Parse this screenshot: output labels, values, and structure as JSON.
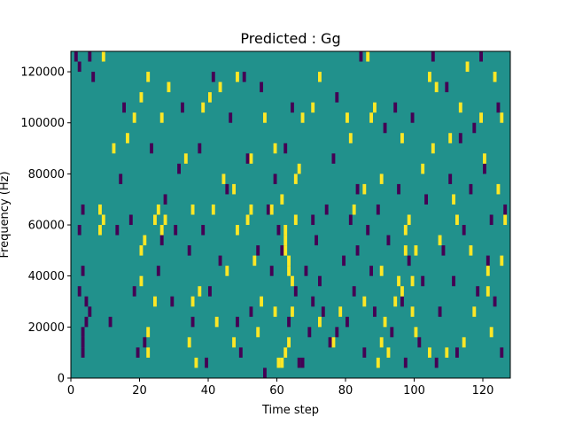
{
  "chart_data": {
    "type": "heatmap",
    "title": "Predicted : Gg",
    "xlabel": "Time step",
    "ylabel": "Frequency (Hz)",
    "xlim": [
      0,
      128
    ],
    "ylim": [
      0,
      128000
    ],
    "x_ticks": [
      0,
      20,
      40,
      60,
      80,
      100,
      120
    ],
    "y_ticks": [
      0,
      20000,
      40000,
      60000,
      80000,
      100000,
      120000
    ],
    "x_tick_labels": [
      "0",
      "20",
      "40",
      "60",
      "80",
      "100",
      "120"
    ],
    "y_tick_labels": [
      "0",
      "20000",
      "40000",
      "60000",
      "80000",
      "100000",
      "120000"
    ],
    "grid": false,
    "colormap": "viridis",
    "colors": {
      "background": "#21918c",
      "low": "#440154",
      "high": "#fde725"
    },
    "cell_width_steps": 1,
    "cell_height_hz": 4000,
    "high_cells": [
      [
        9,
        124000
      ],
      [
        22,
        116000
      ],
      [
        24,
        60000
      ],
      [
        25,
        64000
      ],
      [
        26,
        56000
      ],
      [
        27,
        60000
      ],
      [
        12,
        88000
      ],
      [
        16,
        92000
      ],
      [
        18,
        100000
      ],
      [
        20,
        108000
      ],
      [
        8,
        64000
      ],
      [
        8,
        56000
      ],
      [
        9,
        60000
      ],
      [
        20,
        48000
      ],
      [
        21,
        52000
      ],
      [
        20,
        36000
      ],
      [
        22,
        16000
      ],
      [
        22,
        8000
      ],
      [
        24,
        28000
      ],
      [
        26,
        100000
      ],
      [
        28,
        112000
      ],
      [
        33,
        84000
      ],
      [
        34,
        12000
      ],
      [
        35,
        64000
      ],
      [
        35,
        28000
      ],
      [
        36,
        4000
      ],
      [
        37,
        32000
      ],
      [
        38,
        104000
      ],
      [
        40,
        108000
      ],
      [
        42,
        20000
      ],
      [
        44,
        76000
      ],
      [
        45,
        40000
      ],
      [
        47,
        12000
      ],
      [
        48,
        56000
      ],
      [
        48,
        116000
      ],
      [
        51,
        60000
      ],
      [
        52,
        64000
      ],
      [
        53,
        44000
      ],
      [
        54,
        16000
      ],
      [
        55,
        28000
      ],
      [
        58,
        64000
      ],
      [
        59,
        88000
      ],
      [
        61,
        68000
      ],
      [
        62,
        48000
      ],
      [
        62,
        52000
      ],
      [
        62,
        56000
      ],
      [
        63,
        40000
      ],
      [
        63,
        44000
      ],
      [
        64,
        36000
      ],
      [
        64,
        24000
      ],
      [
        60,
        4000
      ],
      [
        61,
        4000
      ],
      [
        62,
        8000
      ],
      [
        63,
        12000
      ],
      [
        65,
        60000
      ],
      [
        65,
        76000
      ],
      [
        66,
        80000
      ],
      [
        67,
        100000
      ],
      [
        70,
        104000
      ],
      [
        72,
        116000
      ],
      [
        72,
        20000
      ],
      [
        76,
        12000
      ],
      [
        78,
        24000
      ],
      [
        80,
        100000
      ],
      [
        81,
        92000
      ],
      [
        82,
        64000
      ],
      [
        85,
        72000
      ],
      [
        86,
        124000
      ],
      [
        88,
        104000
      ],
      [
        90,
        76000
      ],
      [
        89,
        4000
      ],
      [
        90,
        40000
      ],
      [
        90,
        12000
      ],
      [
        91,
        20000
      ],
      [
        92,
        8000
      ],
      [
        94,
        28000
      ],
      [
        95,
        36000
      ],
      [
        96,
        32000
      ],
      [
        97,
        48000
      ],
      [
        97,
        56000
      ],
      [
        98,
        60000
      ],
      [
        99,
        36000
      ],
      [
        99,
        24000
      ],
      [
        100,
        48000
      ],
      [
        100,
        16000
      ],
      [
        102,
        80000
      ],
      [
        104,
        8000
      ],
      [
        104,
        116000
      ],
      [
        106,
        112000
      ],
      [
        109,
        8000
      ],
      [
        111,
        68000
      ],
      [
        113,
        104000
      ],
      [
        114,
        12000
      ],
      [
        115,
        120000
      ],
      [
        116,
        48000
      ],
      [
        117,
        24000
      ],
      [
        119,
        100000
      ],
      [
        121,
        40000
      ],
      [
        121,
        32000
      ],
      [
        120,
        84000
      ],
      [
        122,
        16000
      ],
      [
        123,
        116000
      ],
      [
        125,
        100000
      ],
      [
        124,
        72000
      ],
      [
        125,
        44000
      ],
      [
        126,
        60000
      ],
      [
        105,
        88000
      ],
      [
        110,
        92000
      ],
      [
        112,
        60000
      ],
      [
        107,
        52000
      ],
      [
        87,
        100000
      ],
      [
        85,
        28000
      ],
      [
        96,
        92000
      ],
      [
        47,
        72000
      ],
      [
        43,
        112000
      ],
      [
        59,
        24000
      ],
      [
        56,
        100000
      ],
      [
        41,
        64000
      ],
      [
        52,
        84000
      ]
    ],
    "low_cells": [
      [
        1,
        124000
      ],
      [
        2,
        120000
      ],
      [
        3,
        8000
      ],
      [
        3,
        12000
      ],
      [
        3,
        16000
      ],
      [
        4,
        20000
      ],
      [
        5,
        24000
      ],
      [
        4,
        28000
      ],
      [
        2,
        32000
      ],
      [
        3,
        40000
      ],
      [
        2,
        56000
      ],
      [
        3,
        64000
      ],
      [
        5,
        124000
      ],
      [
        6,
        116000
      ],
      [
        11,
        20000
      ],
      [
        13,
        56000
      ],
      [
        14,
        76000
      ],
      [
        15,
        104000
      ],
      [
        17,
        60000
      ],
      [
        18,
        32000
      ],
      [
        19,
        8000
      ],
      [
        21,
        12000
      ],
      [
        23,
        88000
      ],
      [
        25,
        40000
      ],
      [
        26,
        52000
      ],
      [
        27,
        68000
      ],
      [
        29,
        28000
      ],
      [
        30,
        56000
      ],
      [
        31,
        80000
      ],
      [
        32,
        104000
      ],
      [
        34,
        48000
      ],
      [
        35,
        20000
      ],
      [
        37,
        88000
      ],
      [
        38,
        56000
      ],
      [
        39,
        4000
      ],
      [
        40,
        32000
      ],
      [
        41,
        116000
      ],
      [
        43,
        44000
      ],
      [
        45,
        72000
      ],
      [
        46,
        100000
      ],
      [
        48,
        20000
      ],
      [
        49,
        8000
      ],
      [
        50,
        116000
      ],
      [
        51,
        84000
      ],
      [
        52,
        24000
      ],
      [
        54,
        48000
      ],
      [
        55,
        112000
      ],
      [
        56,
        0
      ],
      [
        57,
        64000
      ],
      [
        58,
        40000
      ],
      [
        59,
        76000
      ],
      [
        60,
        56000
      ],
      [
        62,
        88000
      ],
      [
        63,
        20000
      ],
      [
        64,
        104000
      ],
      [
        66,
        4000
      ],
      [
        67,
        4000
      ],
      [
        68,
        40000
      ],
      [
        69,
        16000
      ],
      [
        70,
        28000
      ],
      [
        71,
        52000
      ],
      [
        72,
        36000
      ],
      [
        73,
        24000
      ],
      [
        74,
        64000
      ],
      [
        75,
        12000
      ],
      [
        76,
        84000
      ],
      [
        77,
        108000
      ],
      [
        79,
        44000
      ],
      [
        80,
        20000
      ],
      [
        81,
        60000
      ],
      [
        82,
        32000
      ],
      [
        83,
        72000
      ],
      [
        84,
        124000
      ],
      [
        85,
        8000
      ],
      [
        86,
        56000
      ],
      [
        87,
        40000
      ],
      [
        88,
        24000
      ],
      [
        89,
        64000
      ],
      [
        91,
        96000
      ],
      [
        92,
        52000
      ],
      [
        93,
        16000
      ],
      [
        94,
        104000
      ],
      [
        95,
        72000
      ],
      [
        96,
        28000
      ],
      [
        97,
        4000
      ],
      [
        98,
        44000
      ],
      [
        99,
        100000
      ],
      [
        101,
        12000
      ],
      [
        102,
        36000
      ],
      [
        103,
        68000
      ],
      [
        105,
        124000
      ],
      [
        106,
        4000
      ],
      [
        107,
        24000
      ],
      [
        108,
        48000
      ],
      [
        109,
        112000
      ],
      [
        110,
        76000
      ],
      [
        111,
        36000
      ],
      [
        112,
        8000
      ],
      [
        113,
        92000
      ],
      [
        114,
        56000
      ],
      [
        116,
        72000
      ],
      [
        117,
        96000
      ],
      [
        118,
        32000
      ],
      [
        119,
        124000
      ],
      [
        120,
        80000
      ],
      [
        121,
        44000
      ],
      [
        122,
        60000
      ],
      [
        123,
        28000
      ],
      [
        124,
        104000
      ],
      [
        125,
        8000
      ],
      [
        126,
        64000
      ],
      [
        61,
        48000
      ],
      [
        65,
        32000
      ],
      [
        70,
        60000
      ],
      [
        77,
        16000
      ],
      [
        83,
        48000
      ]
    ]
  }
}
